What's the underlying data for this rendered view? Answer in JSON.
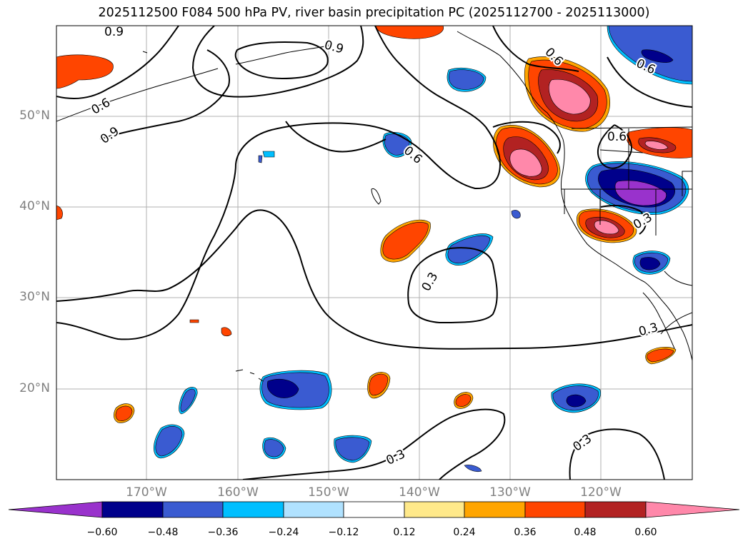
{
  "title": "2025112500 F084 500 hPa PV, river basin precipitation PC (2025112700 - 2025113000)",
  "lat_labels": [
    "50°N",
    "40°N",
    "30°N",
    "20°N"
  ],
  "lon_labels": [
    "170°W",
    "160°W",
    "150°W",
    "140°W",
    "130°W",
    "120°W"
  ],
  "contour_labels": [
    "0.9",
    "0.9",
    "0.9",
    "0.6",
    "0.6",
    "0.6",
    "0.6",
    "0.6",
    "0.3",
    "0.3",
    "0.3",
    "0.3",
    "0.3"
  ],
  "colorbar": {
    "ticks": [
      "−0.60",
      "−0.48",
      "−0.36",
      "−0.24",
      "−0.12",
      "0.12",
      "0.24",
      "0.36",
      "0.48",
      "0.60"
    ],
    "colors": [
      "#9932cc",
      "#00008b",
      "#3a5bd1",
      "#00bfff",
      "#b0e2ff",
      "#ffffff",
      "#ffe98a",
      "#ffa500",
      "#ff4500",
      "#b22222",
      "#ff88aa"
    ]
  }
}
